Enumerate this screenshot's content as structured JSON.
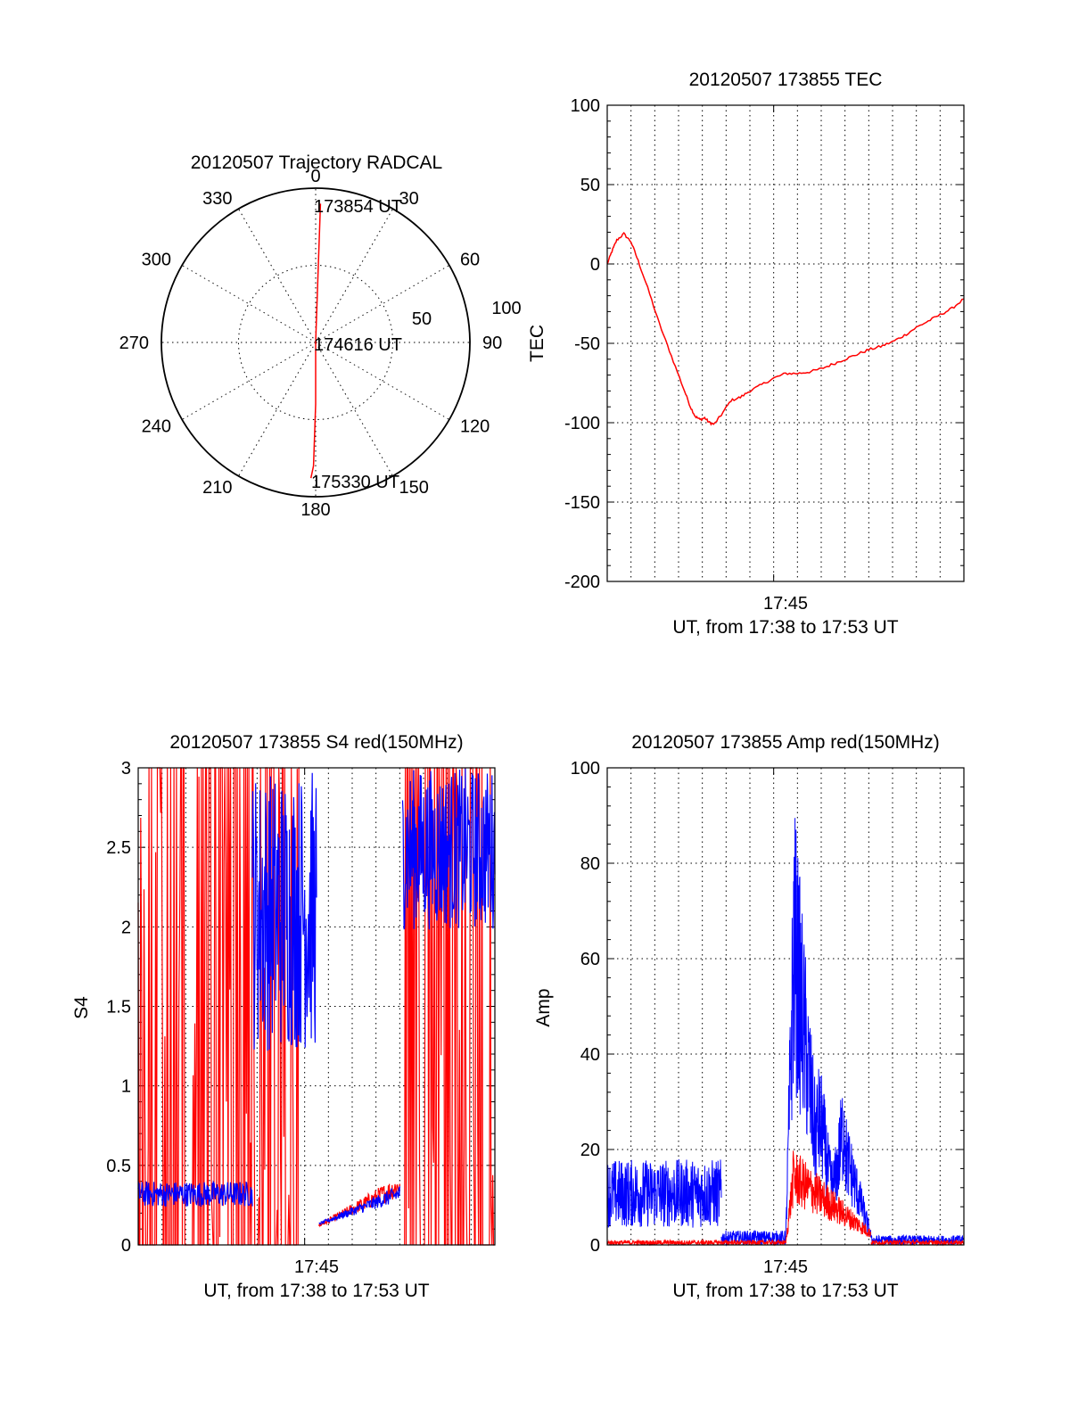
{
  "colors": {
    "red": "#ff0000",
    "blue": "#0000ff",
    "axis": "#000000"
  },
  "chart_data": [
    {
      "id": "trajectory",
      "type": "scatter",
      "projection": "polar",
      "title": "20120507 Trajectory RADCAL",
      "azimuth_labels": [
        "0",
        "30",
        "60",
        "90",
        "120",
        "150",
        "180",
        "210",
        "240",
        "270",
        "300",
        "330"
      ],
      "radial_labels": [
        "50",
        "100"
      ],
      "rlim": [
        0,
        100
      ],
      "annotations": [
        "173854 UT",
        "174616 UT",
        "175330 UT"
      ],
      "track": {
        "color": "red",
        "azimuth_deg": [
          2,
          2,
          2,
          0,
          180,
          181,
          182
        ],
        "radius": [
          90,
          70,
          40,
          0,
          40,
          80,
          88
        ]
      }
    },
    {
      "id": "tec",
      "type": "line",
      "title": "20120507 173855 TEC",
      "xlabel": "UT, from 17:38 to 17:53 UT",
      "ylabel": "TEC",
      "xlim": [
        "17:38",
        "17:53"
      ],
      "ylim": [
        -200,
        100
      ],
      "yticks": [
        "100",
        "50",
        "0",
        "-50",
        "-100",
        "-150",
        "-200"
      ],
      "xticks": [
        "17:45"
      ],
      "grid": true,
      "series": [
        {
          "color": "red",
          "x_minutes_after_1738": [
            0.0,
            0.2,
            0.4,
            0.7,
            1.0,
            1.3,
            1.7,
            2.2,
            2.7,
            3.2,
            3.5,
            3.7,
            3.9,
            4.1,
            4.3,
            4.5,
            4.8,
            5.2,
            5.6,
            6.0,
            6.5,
            7.0,
            7.5,
            8.0,
            8.5,
            9.0,
            9.5,
            10.0,
            10.5,
            11.0,
            11.5,
            12.0,
            12.5,
            13.0,
            13.5,
            14.0,
            14.5,
            15.0
          ],
          "y": [
            0,
            8,
            15,
            19,
            14,
            2,
            -15,
            -38,
            -58,
            -78,
            -90,
            -96,
            -98,
            -97,
            -100,
            -101,
            -95,
            -86,
            -84,
            -80,
            -76,
            -72,
            -69,
            -69,
            -68,
            -66,
            -63,
            -60,
            -57,
            -54,
            -52,
            -49,
            -45,
            -40,
            -36,
            -32,
            -28,
            -22
          ]
        }
      ]
    },
    {
      "id": "s4",
      "type": "line",
      "title": "20120507 173855 S4 red(150MHz)",
      "xlabel": "UT, from 17:38 to 17:53 UT",
      "ylabel": "S4",
      "xlim": [
        "17:38",
        "17:53"
      ],
      "ylim": [
        0,
        3
      ],
      "yticks": [
        "3",
        "2.5",
        "2",
        "1.5",
        "1",
        "0.5",
        "0"
      ],
      "xticks": [
        "17:45"
      ],
      "grid": true,
      "series": [
        {
          "color": "red",
          "description_segments": [
            {
              "x_range": [
                0.0,
                6.8
              ],
              "y_range": [
                0.0,
                3.0
              ],
              "pattern": "saturated-spikes"
            },
            {
              "x_range": [
                7.6,
                11.0
              ],
              "y_range": [
                0.08,
                0.6
              ],
              "pattern": "noisy-rise"
            },
            {
              "x_range": [
                11.2,
                15.0
              ],
              "y_range": [
                0.0,
                3.0
              ],
              "pattern": "saturated-spikes"
            }
          ]
        },
        {
          "color": "blue",
          "description_segments": [
            {
              "x_range": [
                0.0,
                4.8
              ],
              "y_range": [
                0.2,
                0.4
              ],
              "pattern": "noisy-flat"
            },
            {
              "x_range": [
                4.8,
                7.5
              ],
              "y_range": [
                0.9,
                3.0
              ],
              "pattern": "noisy-high"
            },
            {
              "x_range": [
                7.6,
                11.0
              ],
              "y_range": [
                0.1,
                0.5
              ],
              "pattern": "noisy-rise"
            },
            {
              "x_range": [
                11.1,
                15.0
              ],
              "y_range": [
                1.8,
                3.0
              ],
              "pattern": "noisy-high"
            }
          ]
        }
      ]
    },
    {
      "id": "amp",
      "type": "line",
      "title": "20120507 173855 Amp red(150MHz)",
      "xlabel": "UT, from 17:38 to 17:53 UT",
      "ylabel": "Amp",
      "xlim": [
        "17:38",
        "17:53"
      ],
      "ylim": [
        0,
        100
      ],
      "yticks": [
        "100",
        "80",
        "60",
        "40",
        "20",
        "0"
      ],
      "xticks": [
        "17:45"
      ],
      "grid": true,
      "series": [
        {
          "color": "blue",
          "description_segments": [
            {
              "x_range": [
                0.0,
                4.8
              ],
              "y_range": [
                0,
                18
              ],
              "pattern": "noisy-flat"
            },
            {
              "x_range": [
                4.8,
                7.5
              ],
              "y_range": [
                0,
                3
              ],
              "pattern": "low-flat"
            },
            {
              "x_range": [
                7.5,
                11.1
              ],
              "y_range": [
                0,
                94
              ],
              "pattern": "burst"
            },
            {
              "x_range": [
                11.1,
                15.0
              ],
              "y_range": [
                0,
                2
              ],
              "pattern": "low-flat"
            }
          ]
        },
        {
          "color": "red",
          "description_segments": [
            {
              "x_range": [
                0.0,
                7.5
              ],
              "y_range": [
                0,
                1
              ],
              "pattern": "low-flat"
            },
            {
              "x_range": [
                7.5,
                11.1
              ],
              "y_range": [
                0,
                22
              ],
              "pattern": "burst-small"
            },
            {
              "x_range": [
                11.1,
                15.0
              ],
              "y_range": [
                0,
                1
              ],
              "pattern": "low-flat"
            }
          ]
        }
      ]
    }
  ]
}
